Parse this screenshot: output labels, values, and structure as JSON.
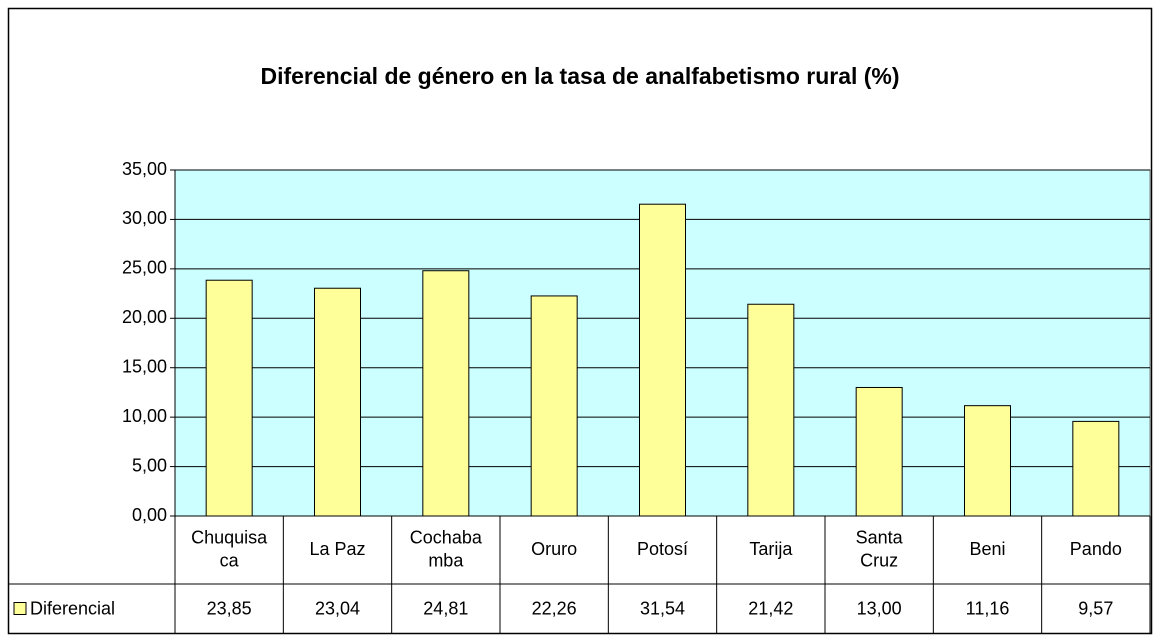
{
  "chart_data": {
    "type": "bar",
    "title": "Diferencial de género en la tasa de analfabetismo rural (%)",
    "categories": [
      "Chuquisaca",
      "La Paz",
      "Cochabamba",
      "Oruro",
      "Potosí",
      "Tarija",
      "Santa Cruz",
      "Beni",
      "Pando"
    ],
    "series": [
      {
        "name": "Diferencial",
        "color": "#ffff99",
        "values": [
          23.85,
          23.04,
          24.81,
          22.26,
          31.54,
          21.42,
          13.0,
          11.16,
          9.57
        ],
        "value_labels": [
          "23,85",
          "23,04",
          "24,81",
          "22,26",
          "31,54",
          "21,42",
          "13,00",
          "11,16",
          "9,57"
        ]
      }
    ],
    "ylim": [
      0,
      35
    ],
    "yticks": [
      {
        "value": 0,
        "label": "0,00"
      },
      {
        "value": 5,
        "label": "5,00"
      },
      {
        "value": 10,
        "label": "10,00"
      },
      {
        "value": 15,
        "label": "15,00"
      },
      {
        "value": 20,
        "label": "20,00"
      },
      {
        "value": 25,
        "label": "25,00"
      },
      {
        "value": 30,
        "label": "30,00"
      },
      {
        "value": 35,
        "label": "35,00"
      }
    ],
    "grid": true,
    "plot_background": "#ccffff"
  }
}
